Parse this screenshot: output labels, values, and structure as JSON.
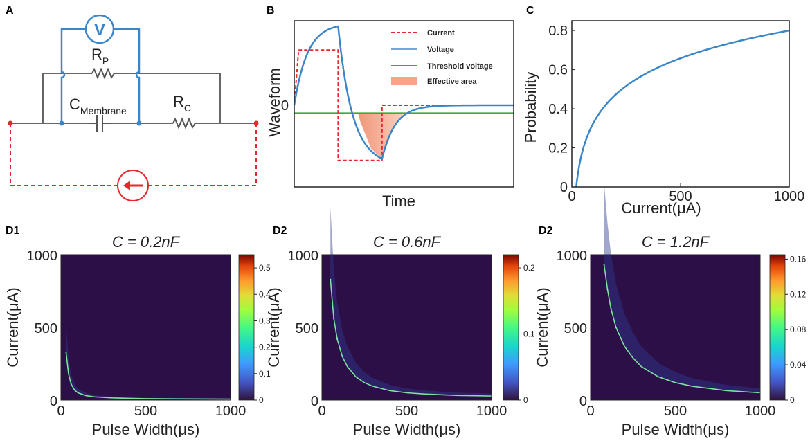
{
  "panel_labels": {
    "a": "A",
    "b": "B",
    "c": "C",
    "d1": "D1",
    "d2": "D2",
    "d3": "D2"
  },
  "circuit": {
    "voltmeter": "V",
    "rp_main": "R",
    "rp_sub": "P",
    "cm_main": "C",
    "cm_sub": "Membrane",
    "rc_main": "R",
    "rc_sub": "C"
  },
  "colors": {
    "blue": "#3a86c8",
    "red": "#e8262b",
    "green": "#3aaa3a",
    "gray": "#606060",
    "fill": "#f4a58a",
    "dark": "#2c0f47"
  },
  "chart_data": [
    {
      "type": "line",
      "panel": "B",
      "title": "",
      "xlabel": "Time",
      "ylabel": "Waveform",
      "ytick": "0",
      "legend": [
        "Current",
        "Voltage",
        "Threshold voltage",
        "Effective area"
      ],
      "legend_position": "top-right",
      "series": [
        {
          "name": "Current",
          "x": [
            0,
            0.02,
            0.02,
            0.2,
            0.2,
            0.4,
            0.4,
            1.0
          ],
          "values": [
            0,
            0.7,
            0.7,
            0.7,
            -0.7,
            -0.7,
            0,
            0
          ]
        },
        {
          "name": "Voltage",
          "x": [
            0,
            0.05,
            0.1,
            0.15,
            0.2,
            0.25,
            0.3,
            0.35,
            0.4,
            0.45,
            0.5,
            0.6,
            0.7,
            0.8,
            1.0
          ],
          "values": [
            0,
            0.65,
            0.85,
            0.95,
            1.0,
            0.35,
            -0.2,
            -0.55,
            -0.68,
            -0.3,
            -0.1,
            -0.02,
            0,
            0,
            0
          ]
        },
        {
          "name": "Threshold voltage",
          "x": [
            0,
            1
          ],
          "values": [
            -0.1,
            -0.1
          ]
        }
      ],
      "effective_area_x": [
        0.25,
        0.4
      ]
    },
    {
      "type": "line",
      "panel": "C",
      "xlabel": "Current(μA)",
      "ylabel": "Probability",
      "xlim": [
        0,
        1000
      ],
      "ylim": [
        0,
        0.85
      ],
      "xticks": [
        0,
        500,
        1000
      ],
      "yticks": [
        0,
        0.2,
        0.4,
        0.6,
        0.8
      ],
      "x": [
        20,
        30,
        40,
        50,
        60,
        80,
        100,
        130,
        160,
        200,
        250,
        300,
        400,
        500,
        600,
        700,
        800,
        900,
        1000
      ],
      "values": [
        0.0,
        0.18,
        0.28,
        0.35,
        0.4,
        0.46,
        0.51,
        0.55,
        0.585,
        0.615,
        0.645,
        0.67,
        0.7,
        0.725,
        0.745,
        0.762,
        0.776,
        0.789,
        0.8
      ]
    },
    {
      "type": "heatmap",
      "panel": "D1",
      "title": "C = 0.2nF",
      "xlabel": "Pulse Width(μs)",
      "ylabel": "Current(μA)",
      "xlim": [
        0,
        1000
      ],
      "ylim": [
        0,
        1000
      ],
      "xticks": [
        0,
        500,
        1000
      ],
      "yticks": [
        0,
        500,
        1000
      ],
      "colorbar_ticks": [
        "0",
        "0.1",
        "0.2",
        "0.3",
        "0.4",
        "0.5"
      ],
      "colorbar_max": 0.55,
      "threshold_curve": {
        "x": [
          30,
          45,
          60,
          80,
          100,
          150,
          200,
          300,
          400,
          500,
          600,
          800,
          1000
        ],
        "y": [
          330,
          180,
          110,
          70,
          50,
          30,
          22,
          15,
          12,
          10,
          9,
          8,
          7
        ]
      }
    },
    {
      "type": "heatmap",
      "panel": "D2",
      "title": "C = 0.6nF",
      "xlabel": "Pulse Width(μs)",
      "ylabel": "Current(μA)",
      "xlim": [
        0,
        1000
      ],
      "ylim": [
        0,
        1000
      ],
      "xticks": [
        0,
        500,
        1000
      ],
      "yticks": [
        0,
        500,
        1000
      ],
      "colorbar_ticks": [
        "0",
        "0.1",
        "0.2"
      ],
      "colorbar_max": 0.22,
      "threshold_curve": {
        "x": [
          50,
          70,
          90,
          120,
          150,
          200,
          250,
          300,
          400,
          500,
          600,
          800,
          1000
        ],
        "y": [
          830,
          560,
          420,
          300,
          230,
          160,
          120,
          95,
          65,
          50,
          42,
          32,
          28
        ]
      }
    },
    {
      "type": "heatmap",
      "panel": "D3",
      "title": "C = 1.2nF",
      "xlabel": "Pulse Width(μs)",
      "ylabel": "Current(μA)",
      "xlim": [
        0,
        1000
      ],
      "ylim": [
        0,
        1000
      ],
      "xticks": [
        0,
        500,
        1000
      ],
      "yticks": [
        0,
        500,
        1000
      ],
      "colorbar_ticks": [
        "0",
        "0.04",
        "0.08",
        "0.12",
        "0.16"
      ],
      "colorbar_max": 0.165,
      "threshold_curve": {
        "x": [
          80,
          100,
          120,
          150,
          200,
          250,
          300,
          400,
          500,
          600,
          800,
          1000
        ],
        "y": [
          930,
          760,
          630,
          500,
          370,
          290,
          230,
          160,
          120,
          95,
          65,
          50
        ]
      }
    }
  ]
}
